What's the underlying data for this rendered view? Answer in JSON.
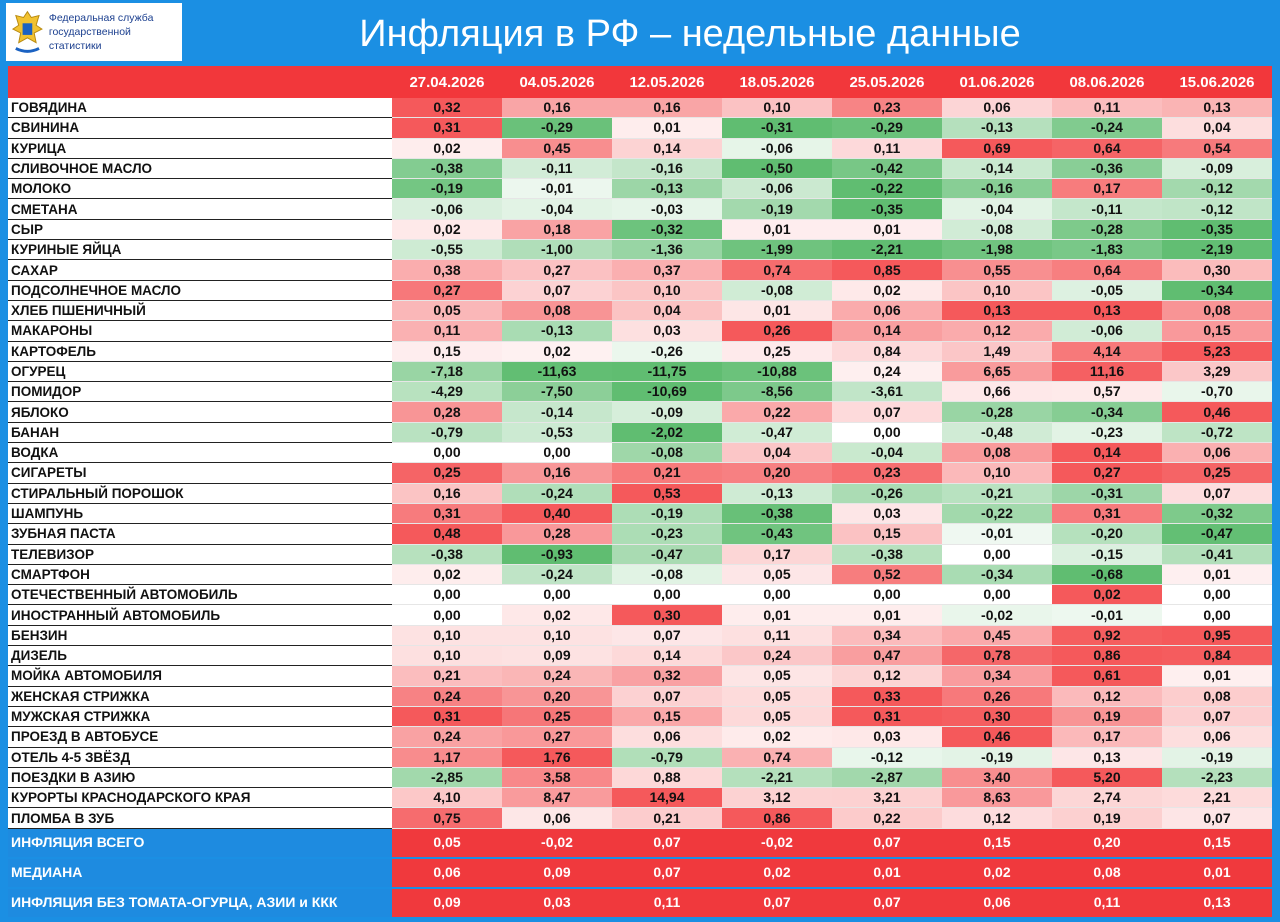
{
  "header": {
    "logo_line1": "Федеральная служба",
    "logo_line2": "государственной статистики",
    "title": "Инфляция в РФ – недельные данные"
  },
  "table": {
    "columns": [
      "27.04.2026",
      "04.05.2026",
      "12.05.2026",
      "18.05.2026",
      "25.05.2026",
      "01.06.2026",
      "08.06.2026",
      "15.06.2026"
    ],
    "rows": [
      {
        "label": "ГОВЯДИНА",
        "values": [
          "0,32",
          "0,16",
          "0,16",
          "0,10",
          "0,23",
          "0,06",
          "0,11",
          "0,13"
        ]
      },
      {
        "label": "СВИНИНА",
        "values": [
          "0,31",
          "-0,29",
          "0,01",
          "-0,31",
          "-0,29",
          "-0,13",
          "-0,24",
          "0,04"
        ]
      },
      {
        "label": "КУРИЦА",
        "values": [
          "0,02",
          "0,45",
          "0,14",
          "-0,06",
          "0,11",
          "0,69",
          "0,64",
          "0,54"
        ]
      },
      {
        "label": "СЛИВОЧНОЕ МАСЛО",
        "values": [
          "-0,38",
          "-0,11",
          "-0,16",
          "-0,50",
          "-0,42",
          "-0,14",
          "-0,36",
          "-0,09"
        ]
      },
      {
        "label": "МОЛОКО",
        "values": [
          "-0,19",
          "-0,01",
          "-0,13",
          "-0,06",
          "-0,22",
          "-0,16",
          "0,17",
          "-0,12"
        ]
      },
      {
        "label": "СМЕТАНА",
        "values": [
          "-0,06",
          "-0,04",
          "-0,03",
          "-0,19",
          "-0,35",
          "-0,04",
          "-0,11",
          "-0,12"
        ]
      },
      {
        "label": "СЫР",
        "values": [
          "0,02",
          "0,18",
          "-0,32",
          "0,01",
          "0,01",
          "-0,08",
          "-0,28",
          "-0,35"
        ]
      },
      {
        "label": "КУРИНЫЕ ЯЙЦА",
        "values": [
          "-0,55",
          "-1,00",
          "-1,36",
          "-1,99",
          "-2,21",
          "-1,98",
          "-1,83",
          "-2,19"
        ]
      },
      {
        "label": "САХАР",
        "values": [
          "0,38",
          "0,27",
          "0,37",
          "0,74",
          "0,85",
          "0,55",
          "0,64",
          "0,30"
        ]
      },
      {
        "label": "ПОДСОЛНЕЧНОЕ МАСЛО",
        "values": [
          "0,27",
          "0,07",
          "0,10",
          "-0,08",
          "0,02",
          "0,10",
          "-0,05",
          "-0,34"
        ]
      },
      {
        "label": "ХЛЕБ ПШЕНИЧНЫЙ",
        "values": [
          "0,05",
          "0,08",
          "0,04",
          "0,01",
          "0,06",
          "0,13",
          "0,13",
          "0,08"
        ]
      },
      {
        "label": "МАКАРОНЫ",
        "values": [
          "0,11",
          "-0,13",
          "0,03",
          "0,26",
          "0,14",
          "0,12",
          "-0,06",
          "0,15"
        ]
      },
      {
        "label": "КАРТОФЕЛЬ",
        "values": [
          "0,15",
          "0,02",
          "-0,26",
          "0,25",
          "0,84",
          "1,49",
          "4,14",
          "5,23"
        ]
      },
      {
        "label": "ОГУРЕЦ",
        "values": [
          "-7,18",
          "-11,63",
          "-11,75",
          "-10,88",
          "0,24",
          "6,65",
          "11,16",
          "3,29"
        ]
      },
      {
        "label": "ПОМИДОР",
        "values": [
          "-4,29",
          "-7,50",
          "-10,69",
          "-8,56",
          "-3,61",
          "0,66",
          "0,57",
          "-0,70"
        ]
      },
      {
        "label": "ЯБЛОКО",
        "values": [
          "0,28",
          "-0,14",
          "-0,09",
          "0,22",
          "0,07",
          "-0,28",
          "-0,34",
          "0,46"
        ]
      },
      {
        "label": "БАНАН",
        "values": [
          "-0,79",
          "-0,53",
          "-2,02",
          "-0,47",
          "0,00",
          "-0,48",
          "-0,23",
          "-0,72"
        ]
      },
      {
        "label": "ВОДКА",
        "values": [
          "0,00",
          "0,00",
          "-0,08",
          "0,04",
          "-0,04",
          "0,08",
          "0,14",
          "0,06"
        ]
      },
      {
        "label": "СИГАРЕТЫ",
        "values": [
          "0,25",
          "0,16",
          "0,21",
          "0,20",
          "0,23",
          "0,10",
          "0,27",
          "0,25"
        ]
      },
      {
        "label": "СТИРАЛЬНЫЙ ПОРОШОК",
        "values": [
          "0,16",
          "-0,24",
          "0,53",
          "-0,13",
          "-0,26",
          "-0,21",
          "-0,31",
          "0,07"
        ]
      },
      {
        "label": "ШАМПУНЬ",
        "values": [
          "0,31",
          "0,40",
          "-0,19",
          "-0,38",
          "0,03",
          "-0,22",
          "0,31",
          "-0,32"
        ]
      },
      {
        "label": "ЗУБНАЯ ПАСТА",
        "values": [
          "0,48",
          "0,28",
          "-0,23",
          "-0,43",
          "0,15",
          "-0,01",
          "-0,20",
          "-0,47"
        ]
      },
      {
        "label": "ТЕЛЕВИЗОР",
        "values": [
          "-0,38",
          "-0,93",
          "-0,47",
          "0,17",
          "-0,38",
          "0,00",
          "-0,15",
          "-0,41"
        ]
      },
      {
        "label": "СМАРТФОН",
        "values": [
          "0,02",
          "-0,24",
          "-0,08",
          "0,05",
          "0,52",
          "-0,34",
          "-0,68",
          "0,01"
        ]
      },
      {
        "label": "ОТЕЧЕСТВЕННЫЙ АВТОМОБИЛЬ",
        "values": [
          "0,00",
          "0,00",
          "0,00",
          "0,00",
          "0,00",
          "0,00",
          "0,02",
          "0,00"
        ]
      },
      {
        "label": "ИНОСТРАННЫЙ АВТОМОБИЛЬ",
        "values": [
          "0,00",
          "0,02",
          "0,30",
          "0,01",
          "0,01",
          "-0,02",
          "-0,01",
          "0,00"
        ]
      },
      {
        "label": "БЕНЗИН",
        "values": [
          "0,10",
          "0,10",
          "0,07",
          "0,11",
          "0,34",
          "0,45",
          "0,92",
          "0,95"
        ]
      },
      {
        "label": "ДИЗЕЛЬ",
        "values": [
          "0,10",
          "0,09",
          "0,14",
          "0,24",
          "0,47",
          "0,78",
          "0,86",
          "0,84"
        ]
      },
      {
        "label": "МОЙКА АВТОМОБИЛЯ",
        "values": [
          "0,21",
          "0,24",
          "0,32",
          "0,05",
          "0,12",
          "0,34",
          "0,61",
          "0,01"
        ]
      },
      {
        "label": "ЖЕНСКАЯ СТРИЖКА",
        "values": [
          "0,24",
          "0,20",
          "0,07",
          "0,05",
          "0,33",
          "0,26",
          "0,12",
          "0,08"
        ]
      },
      {
        "label": "МУЖСКАЯ СТРИЖКА",
        "values": [
          "0,31",
          "0,25",
          "0,15",
          "0,05",
          "0,31",
          "0,30",
          "0,19",
          "0,07"
        ]
      },
      {
        "label": "ПРОЕЗД В АВТОБУСЕ",
        "values": [
          "0,24",
          "0,27",
          "0,06",
          "0,02",
          "0,03",
          "0,46",
          "0,17",
          "0,06"
        ]
      },
      {
        "label": "ОТЕЛЬ 4-5 ЗВЁЗД",
        "values": [
          "1,17",
          "1,76",
          "-0,79",
          "0,74",
          "-0,12",
          "-0,19",
          "0,13",
          "-0,19"
        ]
      },
      {
        "label": "ПОЕЗДКИ В АЗИЮ",
        "values": [
          "-2,85",
          "3,58",
          "0,88",
          "-2,21",
          "-2,87",
          "3,40",
          "5,20",
          "-2,23"
        ]
      },
      {
        "label": "КУРОРТЫ КРАСНОДАРСКОГО КРАЯ",
        "values": [
          "4,10",
          "8,47",
          "14,94",
          "3,12",
          "3,21",
          "8,63",
          "2,74",
          "2,21"
        ]
      },
      {
        "label": "ПЛОМБА В ЗУБ",
        "values": [
          "0,75",
          "0,06",
          "0,21",
          "0,86",
          "0,22",
          "0,12",
          "0,19",
          "0,07"
        ]
      }
    ],
    "summary_rows": [
      {
        "label": "ИНФЛЯЦИЯ ВСЕГО",
        "values": [
          "0,05",
          "-0,02",
          "0,07",
          "-0,02",
          "0,07",
          "0,15",
          "0,20",
          "0,15"
        ]
      },
      {
        "label": "МЕДИАНА",
        "values": [
          "0,06",
          "0,09",
          "0,07",
          "0,02",
          "0,01",
          "0,02",
          "0,08",
          "0,01"
        ]
      },
      {
        "label": "ИНФЛЯЦИЯ БЕЗ ТОМАТА-ОГУРЦА, АЗИИ и ККК",
        "values": [
          "0,09",
          "0,03",
          "0,11",
          "0,07",
          "0,07",
          "0,06",
          "0,11",
          "0,13"
        ]
      }
    ]
  }
}
